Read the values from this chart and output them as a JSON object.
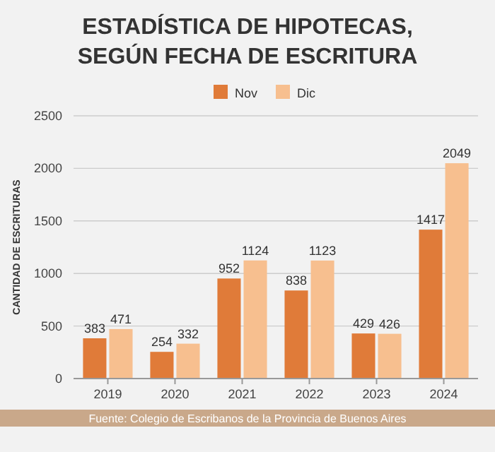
{
  "chart_data": {
    "type": "bar",
    "title": "ESTADÍSTICA DE HIPOTECAS, SEGÚN FECHA DE ESCRITURA",
    "ylabel": "CANTIDAD DE ESCRITURAS",
    "categories": [
      "2019",
      "2020",
      "2021",
      "2022",
      "2023",
      "2024"
    ],
    "series": [
      {
        "name": "Nov",
        "color": "#e07b39",
        "values": [
          383,
          254,
          952,
          838,
          429,
          1417
        ]
      },
      {
        "name": "Dic",
        "color": "#f7bf8f",
        "values": [
          471,
          332,
          1124,
          1123,
          426,
          2049
        ]
      }
    ],
    "ylim": [
      0,
      2500
    ],
    "yticks": [
      0,
      500,
      1000,
      1500,
      2000,
      2500
    ],
    "grid": "y",
    "legend": "top",
    "data_labels": true,
    "annotations": [
      "Fuente: Colegio de Escribanos de la Provincia de Buenos Aires"
    ]
  }
}
